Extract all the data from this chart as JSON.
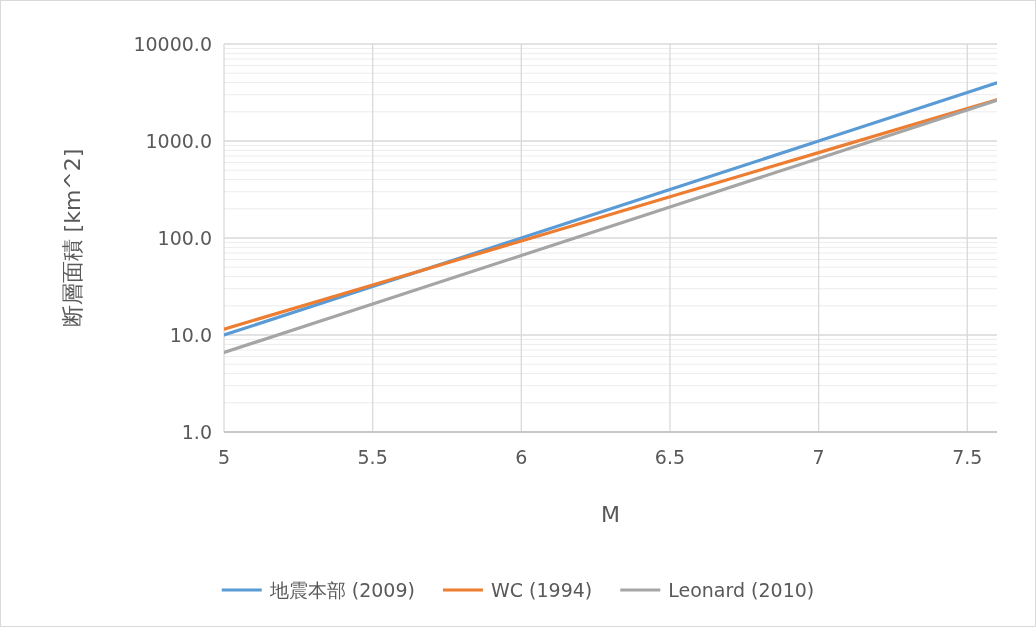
{
  "chart_data": {
    "type": "line",
    "xlabel": "M",
    "ylabel": "断層面積 [km^2]",
    "x": [
      5,
      5.5,
      6,
      6.5,
      7,
      7.5,
      7.6
    ],
    "series": [
      {
        "name": "地震本部 (2009)",
        "color": "#5b9bd5",
        "values": [
          10,
          31.6,
          100,
          316,
          1000,
          3162,
          3981
        ]
      },
      {
        "name": "WC (1994)",
        "color": "#ed7d31",
        "values": [
          11.5,
          32.7,
          93.3,
          266,
          759,
          2163,
          2667
        ]
      },
      {
        "name": "Leonard (2010)",
        "color": "#a5a5a5",
        "values": [
          6.6,
          20.9,
          66,
          209,
          661,
          2089,
          2630
        ]
      }
    ],
    "xlim": [
      5,
      7.6
    ],
    "xticks": [
      5,
      5.5,
      6,
      6.5,
      7,
      7.5
    ],
    "ylim": [
      1,
      10000
    ],
    "yticks": [
      {
        "value": 1,
        "label": "1.0"
      },
      {
        "value": 10,
        "label": "10.0"
      },
      {
        "value": 100,
        "label": "100.0"
      },
      {
        "value": 1000,
        "label": "1000.0"
      },
      {
        "value": 10000,
        "label": "10000.0"
      }
    ],
    "log": "y",
    "grid": true,
    "legend": "bottom"
  }
}
